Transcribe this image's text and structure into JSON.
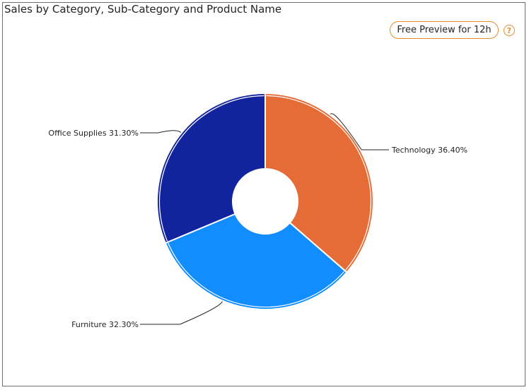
{
  "visual": {
    "title": "Sales by Category, Sub-Category and Product Name",
    "preview_label": "Free Preview for 12h",
    "help_glyph": "?",
    "help_icon": "question-circle-icon",
    "accent_color": "#e88c2c"
  },
  "chart_data": {
    "type": "pie",
    "variant": "donut",
    "title": "Sales by Category, Sub-Category and Product Name",
    "legend": "none",
    "slices": [
      {
        "label": "Technology",
        "value": 36.4,
        "display": "Technology 36.40%",
        "color": "#e66c37"
      },
      {
        "label": "Furniture",
        "value": 32.3,
        "display": "Furniture 32.30%",
        "color": "#118dff"
      },
      {
        "label": "Office Supplies",
        "value": 31.3,
        "display": "Office Supplies 31.30%",
        "color": "#12239e"
      }
    ]
  }
}
